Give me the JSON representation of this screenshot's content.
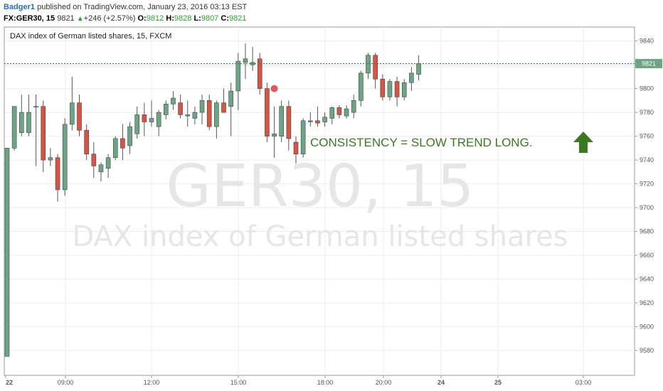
{
  "header": {
    "user": "Badger1",
    "published": "published on TradingView.com, January 23, 2016 03:13 EST",
    "symbol": "FX:GER30, 15",
    "last": "9821",
    "change": "+246 (+2.57%)",
    "open_label": "O:",
    "open": "9812",
    "high_label": "H:",
    "high": "9828",
    "low_label": "L:",
    "low": "9807",
    "close_label": "C:",
    "close": "9821"
  },
  "chart_data": {
    "type": "candlestick",
    "title": "DAX index of German listed shares, 15, FXCM",
    "watermark_symbol": "GER30, 15",
    "watermark_description": "DAX index of German listed shares",
    "annotation": "CONSISTENCY = SLOW TREND LONG.",
    "last_price_label": "9821",
    "last_price": 9821,
    "ylim": [
      9560,
      9850
    ],
    "yticks": [
      9580,
      9600,
      9620,
      9640,
      9660,
      9680,
      9700,
      9720,
      9740,
      9760,
      9780,
      9800,
      9820,
      9840
    ],
    "xticks": [
      "22",
      "09:00",
      "12:00",
      "15:00",
      "18:00",
      "20:00",
      "24",
      "25",
      "03:00"
    ],
    "colors": {
      "up": "#6ba583",
      "down": "#d75442",
      "annotation": "#3a7a1e",
      "marker": "#e05a5a"
    },
    "marker_price": 9800,
    "candles": [
      {
        "o": 9575,
        "h": 9750,
        "l": 9575,
        "c": 9750
      },
      {
        "o": 9750,
        "h": 9785,
        "l": 9748,
        "c": 9785
      },
      {
        "o": 9763,
        "h": 9795,
        "l": 9760,
        "c": 9780
      },
      {
        "o": 9763,
        "h": 9795,
        "l": 9760,
        "c": 9780
      },
      {
        "o": 9785,
        "h": 9795,
        "l": 9735,
        "c": 9785
      },
      {
        "o": 9785,
        "h": 9790,
        "l": 9730,
        "c": 9740
      },
      {
        "o": 9740,
        "h": 9750,
        "l": 9735,
        "c": 9742
      },
      {
        "o": 9742,
        "h": 9745,
        "l": 9705,
        "c": 9715
      },
      {
        "o": 9715,
        "h": 9775,
        "l": 9710,
        "c": 9770
      },
      {
        "o": 9770,
        "h": 9810,
        "l": 9765,
        "c": 9788
      },
      {
        "o": 9788,
        "h": 9795,
        "l": 9760,
        "c": 9765
      },
      {
        "o": 9765,
        "h": 9770,
        "l": 9740,
        "c": 9745
      },
      {
        "o": 9745,
        "h": 9755,
        "l": 9725,
        "c": 9735
      },
      {
        "o": 9730,
        "h": 9738,
        "l": 9722,
        "c": 9736
      },
      {
        "o": 9733,
        "h": 9745,
        "l": 9725,
        "c": 9742
      },
      {
        "o": 9742,
        "h": 9760,
        "l": 9740,
        "c": 9758
      },
      {
        "o": 9758,
        "h": 9770,
        "l": 9740,
        "c": 9750
      },
      {
        "o": 9752,
        "h": 9772,
        "l": 9745,
        "c": 9768
      },
      {
        "o": 9762,
        "h": 9785,
        "l": 9758,
        "c": 9778
      },
      {
        "o": 9778,
        "h": 9788,
        "l": 9760,
        "c": 9772
      },
      {
        "o": 9772,
        "h": 9790,
        "l": 9768,
        "c": 9775
      },
      {
        "o": 9768,
        "h": 9782,
        "l": 9760,
        "c": 9780
      },
      {
        "o": 9778,
        "h": 9790,
        "l": 9774,
        "c": 9787
      },
      {
        "o": 9787,
        "h": 9798,
        "l": 9782,
        "c": 9792
      },
      {
        "o": 9788,
        "h": 9795,
        "l": 9775,
        "c": 9778
      },
      {
        "o": 9777,
        "h": 9790,
        "l": 9768,
        "c": 9778
      },
      {
        "o": 9775,
        "h": 9785,
        "l": 9770,
        "c": 9780
      },
      {
        "o": 9780,
        "h": 9795,
        "l": 9770,
        "c": 9790
      },
      {
        "o": 9790,
        "h": 9795,
        "l": 9765,
        "c": 9768
      },
      {
        "o": 9768,
        "h": 9790,
        "l": 9758,
        "c": 9788
      },
      {
        "o": 9788,
        "h": 9800,
        "l": 9780,
        "c": 9780
      },
      {
        "o": 9785,
        "h": 9805,
        "l": 9760,
        "c": 9798
      },
      {
        "o": 9798,
        "h": 9830,
        "l": 9782,
        "c": 9823
      },
      {
        "o": 9822,
        "h": 9838,
        "l": 9808,
        "c": 9825
      },
      {
        "o": 9820,
        "h": 9835,
        "l": 9815,
        "c": 9822
      },
      {
        "o": 9825,
        "h": 9830,
        "l": 9795,
        "c": 9800
      },
      {
        "o": 9800,
        "h": 9805,
        "l": 9755,
        "c": 9760
      },
      {
        "o": 9760,
        "h": 9785,
        "l": 9742,
        "c": 9762
      },
      {
        "o": 9760,
        "h": 9790,
        "l": 9755,
        "c": 9785
      },
      {
        "o": 9785,
        "h": 9790,
        "l": 9748,
        "c": 9758
      },
      {
        "o": 9755,
        "h": 9760,
        "l": 9737,
        "c": 9745
      },
      {
        "o": 9745,
        "h": 9775,
        "l": 9742,
        "c": 9773
      },
      {
        "o": 9772,
        "h": 9780,
        "l": 9768,
        "c": 9773
      },
      {
        "o": 9773,
        "h": 9785,
        "l": 9768,
        "c": 9771
      },
      {
        "o": 9772,
        "h": 9780,
        "l": 9768,
        "c": 9776
      },
      {
        "o": 9775,
        "h": 9785,
        "l": 9770,
        "c": 9784
      },
      {
        "o": 9784,
        "h": 9786,
        "l": 9775,
        "c": 9778
      },
      {
        "o": 9777,
        "h": 9786,
        "l": 9775,
        "c": 9783
      },
      {
        "o": 9780,
        "h": 9795,
        "l": 9775,
        "c": 9790
      },
      {
        "o": 9790,
        "h": 9815,
        "l": 9785,
        "c": 9813
      },
      {
        "o": 9813,
        "h": 9830,
        "l": 9808,
        "c": 9828
      },
      {
        "o": 9828,
        "h": 9830,
        "l": 9800,
        "c": 9808
      },
      {
        "o": 9808,
        "h": 9812,
        "l": 9790,
        "c": 9793
      },
      {
        "o": 9793,
        "h": 9808,
        "l": 9790,
        "c": 9806
      },
      {
        "o": 9806,
        "h": 9810,
        "l": 9785,
        "c": 9793
      },
      {
        "o": 9793,
        "h": 9808,
        "l": 9790,
        "c": 9805
      },
      {
        "o": 9805,
        "h": 9818,
        "l": 9798,
        "c": 9813
      },
      {
        "o": 9812,
        "h": 9828,
        "l": 9807,
        "c": 9821
      }
    ]
  }
}
